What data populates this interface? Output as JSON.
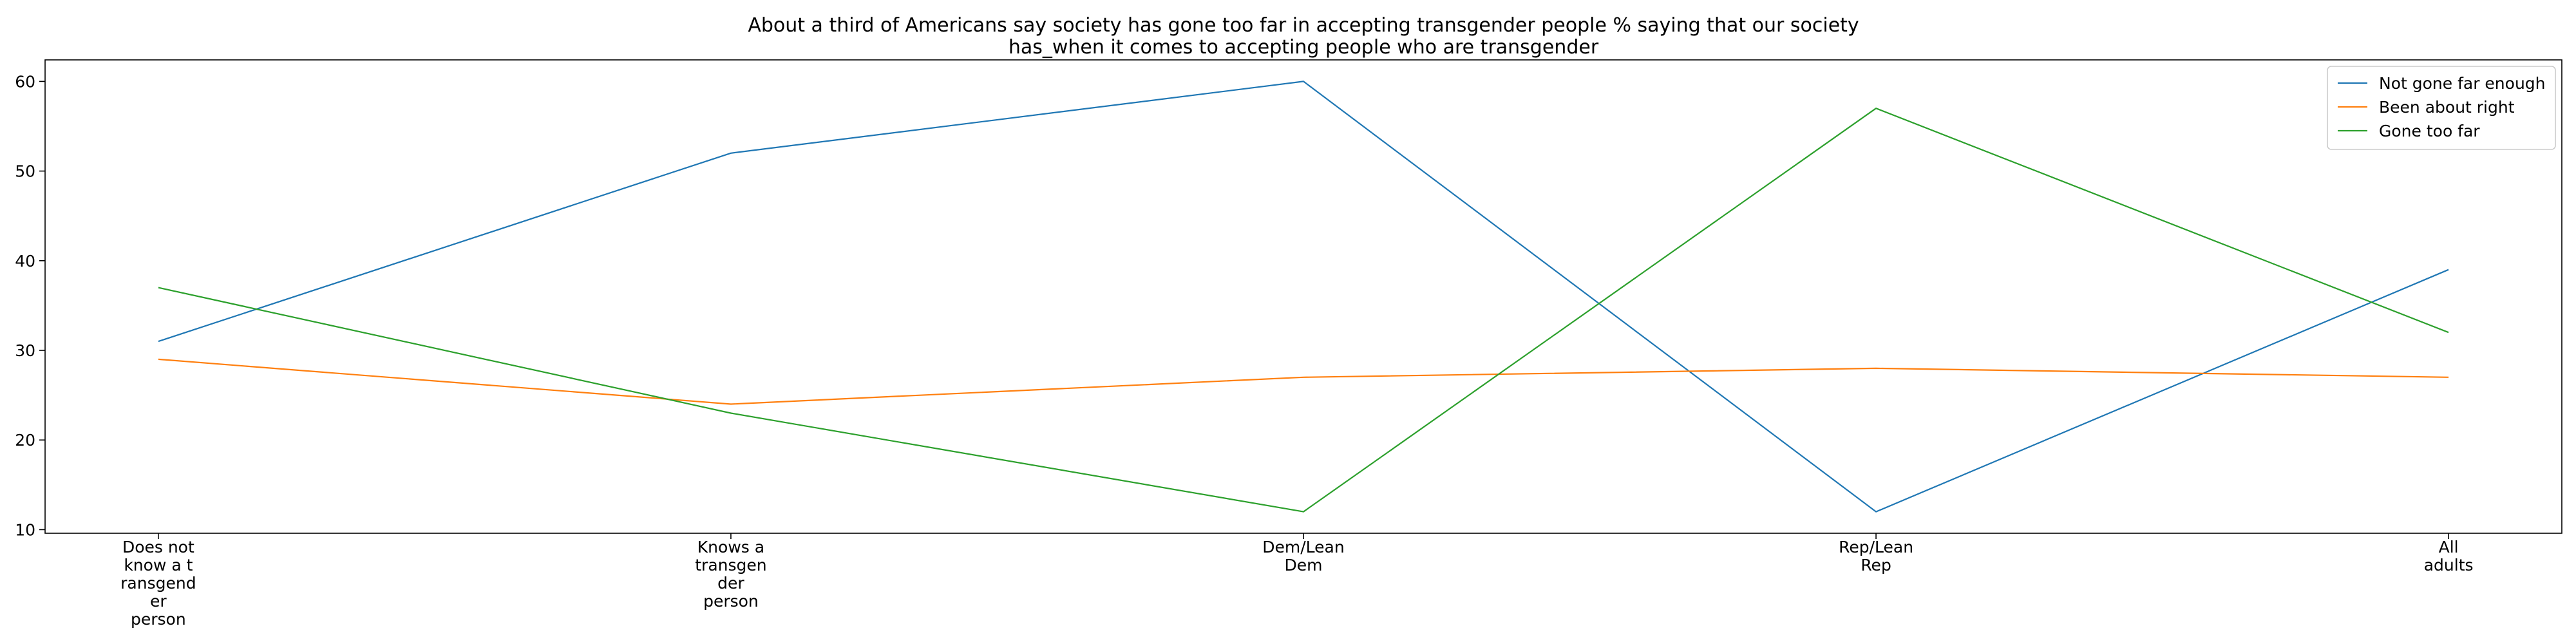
{
  "chart_data": {
    "type": "line",
    "title_lines": [
      "About a third of Americans say society has gone too far in accepting transgender people % saying that our society",
      "has_when it comes to accepting people who are transgender"
    ],
    "xlabel": "",
    "ylabel": "",
    "categories": [
      [
        "Does not",
        "know a t",
        "ransgend",
        "er",
        "person"
      ],
      [
        "Knows a",
        "transgen",
        "der",
        "person"
      ],
      [
        "Dem/Lean",
        "Dem"
      ],
      [
        "Rep/Lean",
        "Rep"
      ],
      [
        "All",
        "adults"
      ]
    ],
    "ylim": [
      9.6,
      62.4
    ],
    "yticks": [
      10,
      20,
      30,
      40,
      50,
      60
    ],
    "grid": false,
    "legend_position": "top-right",
    "series": [
      {
        "name": "Not gone far enough",
        "color": "#1f77b4",
        "values": [
          31,
          52,
          60,
          12,
          39
        ]
      },
      {
        "name": "Been about right",
        "color": "#ff7f0e",
        "values": [
          29,
          24,
          27,
          28,
          27
        ]
      },
      {
        "name": "Gone too far",
        "color": "#2ca02c",
        "values": [
          37,
          23,
          12,
          57,
          32
        ]
      }
    ]
  }
}
